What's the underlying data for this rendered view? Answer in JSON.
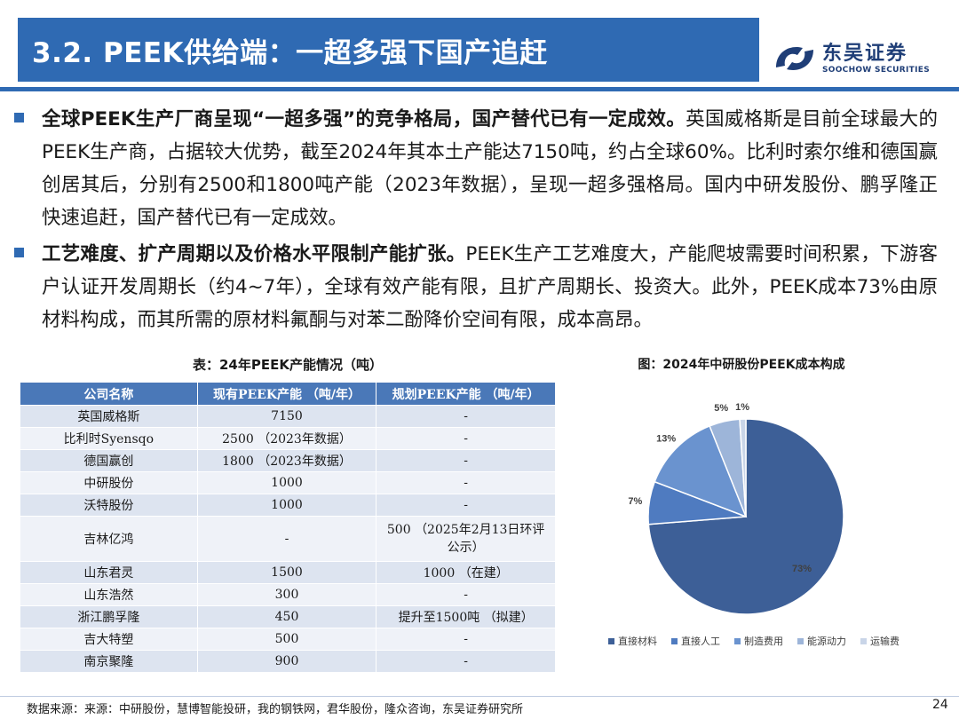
{
  "header": {
    "title": "3.2. PEEK供给端：一超多强下国产追赶",
    "logo_cn": "东吴证券",
    "logo_en": "SOOCHOW SECURITIES"
  },
  "bullets": [
    {
      "bold": "全球PEEK生产厂商呈现“一超多强”的竞争格局，国产替代已有一定成效。",
      "text": "英国威格斯是目前全球最大的PEEK生产商，占据较大优势，截至2024年其本土产能达7150吨，约占全球60%。比利时索尔维和德国赢创居其后，分别有2500和1800吨产能（2023年数据），呈现一超多强格局。国内中研发股份、鹏孚隆正快速追赶，国产替代已有一定成效。"
    },
    {
      "bold": "工艺难度、扩产周期以及价格水平限制产能扩张。",
      "text": "PEEK生产工艺难度大，产能爬坡需要时间积累，下游客户认证开发周期长（约4~7年），全球有效产能有限，且扩产周期长、投资大。此外，PEEK成本73%由原材料构成，而其所需的原材料氟酮与对苯二酚降价空间有限，成本高昂。"
    }
  ],
  "table": {
    "title": "表：24年PEEK产能情况（吨）",
    "headers": [
      "公司名称",
      "现有PEEK产能 （吨/年）",
      "规划PEEK产能 （吨/年）"
    ],
    "rows": [
      [
        "英国威格斯",
        "7150",
        "-"
      ],
      [
        "比利时Syensqo",
        "2500 （2023年数据）",
        "-"
      ],
      [
        "德国赢创",
        "1800 （2023年数据）",
        "-"
      ],
      [
        "中研股份",
        "1000",
        "-"
      ],
      [
        "沃特股份",
        "1000",
        "-"
      ],
      [
        "吉林亿鸿",
        "-",
        "500 （2025年2月13日环评公示）"
      ],
      [
        "山东君灵",
        "1500",
        "1000 （在建）"
      ],
      [
        "山东浩然",
        "300",
        "-"
      ],
      [
        "浙江鹏孚隆",
        "450",
        "提升至1500吨 （拟建）"
      ],
      [
        "吉大特塑",
        "500",
        "-"
      ],
      [
        "南京聚隆",
        "900",
        "-"
      ]
    ]
  },
  "chart_data": {
    "type": "pie",
    "title": "图：2024年中研股份PEEK成本构成",
    "categories": [
      "直接材料",
      "直接人工",
      "制造费用",
      "能源动力",
      "运输费"
    ],
    "values": [
      73,
      7,
      13,
      5,
      1
    ],
    "labels": [
      "73%",
      "7%",
      "13%",
      "5%",
      "1%"
    ],
    "colors": [
      "#3d5f97",
      "#4f7bc0",
      "#6a93cf",
      "#9db5d9",
      "#c9d5e8"
    ],
    "legend_position": "bottom"
  },
  "footer": {
    "source": "数据来源：来源：中研股份，慧博智能投研，我的钢铁网，君华股份，隆众咨询，东吴证券研究所",
    "page": "24"
  }
}
